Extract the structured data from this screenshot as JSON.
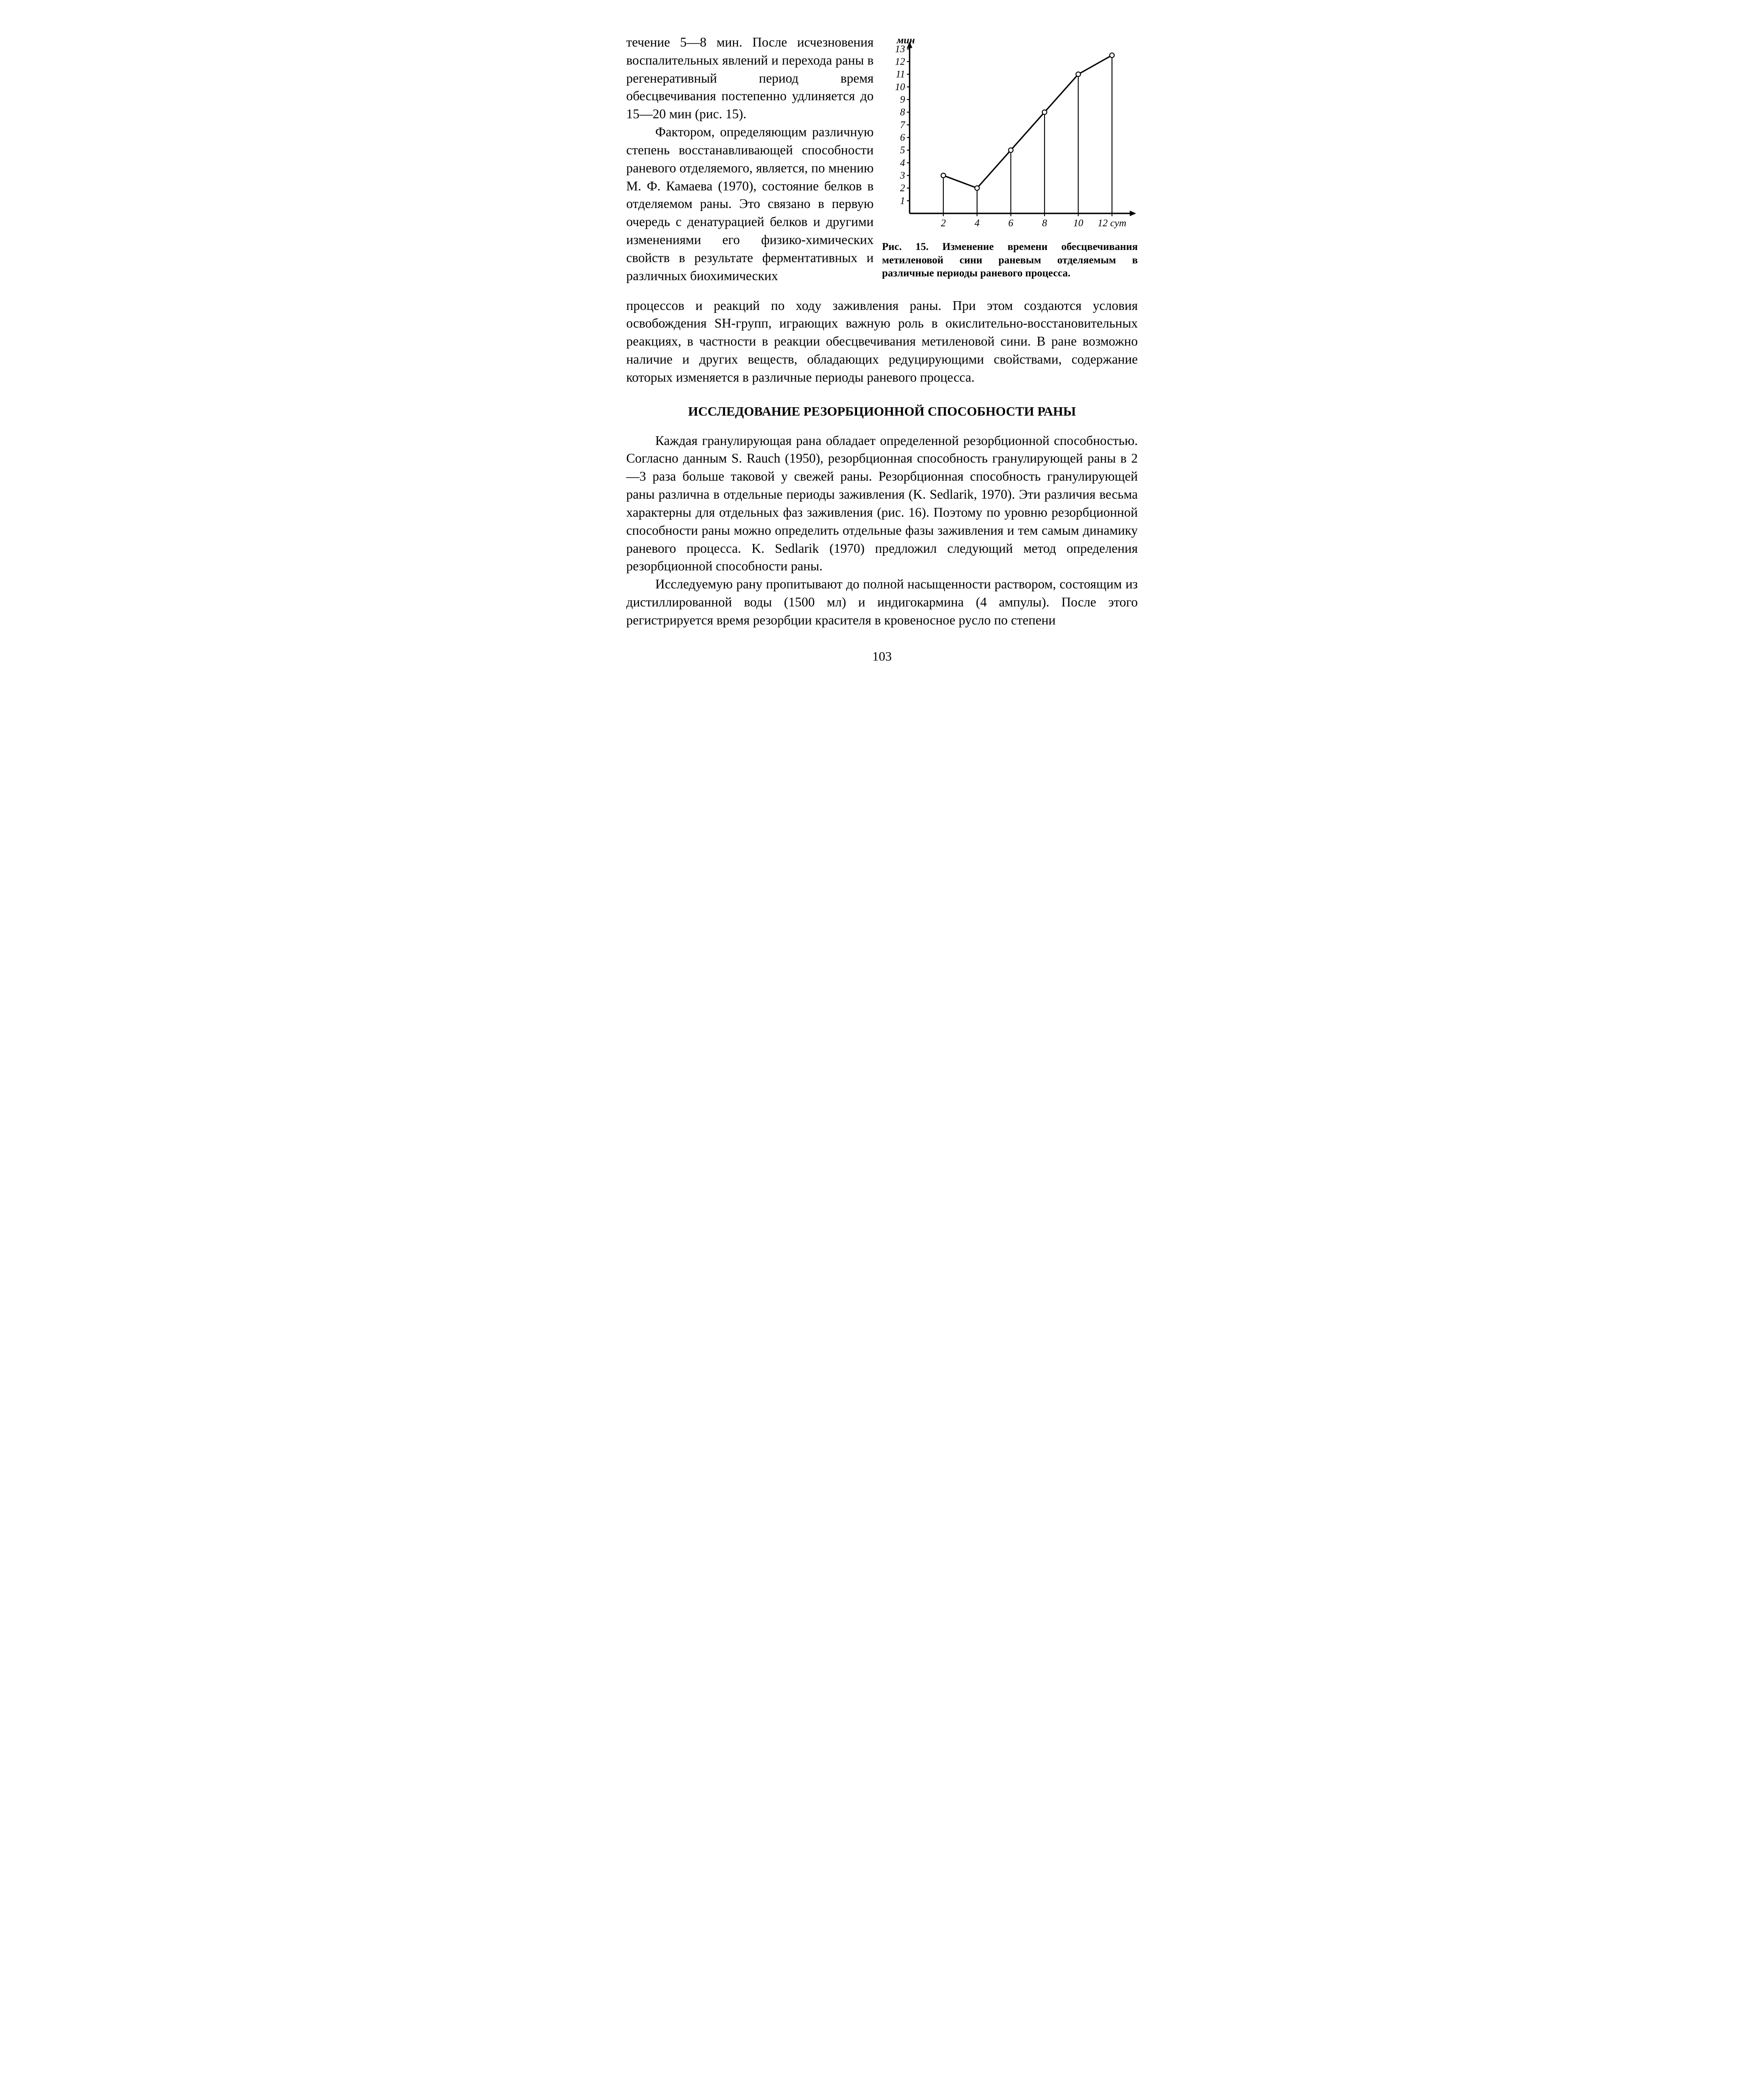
{
  "upper": {
    "p1": "течение 5—8 мин. После исчезновения воспалительных явлений и перехода раны в регенеративный период время обесцвечивания постепенно удлиняется до 15—20 мин (рис. 15).",
    "p2_start": "Фактором, определяющим различную степень восстанавливающей способности раневого отделяемого, является, по мнению М. Ф. Камаева (1970), состояние белков в отделяемом раны. Это связано в первую очередь с денатурацией белков и другими изменениями его физико-химических свойств в результате ферментативных и различных биохимических",
    "p2_full": "процессов и реакций по ходу заживления раны. При этом создаются условия освобождения SH-групп, играющих важную роль в окислительно-восстановительных реакциях, в частности в реакции обесцвечивания метиленовой сини. В ране возможно наличие и других веществ, обладающих редуцирующими свойствами, содержание которых изменяется в различные периоды раневого процесса."
  },
  "figure": {
    "caption": "Рис. 15. Изменение времени обесцвечивания метиленовой сини раневым отделяемым в различные периоды раневого процесса.",
    "ylabel": "мин",
    "xlabel_suffix": "сут",
    "chart": {
      "type": "line",
      "x": [
        2,
        4,
        6,
        8,
        10,
        12
      ],
      "y": [
        3,
        2,
        5,
        8,
        11,
        12.5
      ],
      "ylim": [
        0,
        13
      ],
      "xlim": [
        0,
        13
      ],
      "yticks": [
        1,
        2,
        3,
        4,
        5,
        6,
        7,
        8,
        9,
        10,
        11,
        12,
        13
      ],
      "xticks": [
        2,
        4,
        6,
        8,
        10,
        12
      ],
      "line_color": "#000000",
      "line_width": 3,
      "marker_fill": "#ffffff",
      "marker_stroke": "#000000",
      "marker_radius": 5,
      "drop_lines": true,
      "axis_color": "#000000",
      "axis_width": 3,
      "background": "#ffffff",
      "label_fontsize": 22,
      "font_style": "italic"
    }
  },
  "section_title": "ИССЛЕДОВАНИЕ РЕЗОРБЦИОННОЙ СПОСОБНОСТИ РАНЫ",
  "body": {
    "p3": "Каждая гранулирующая рана обладает определенной резорбционной способностью. Согласно данным S. Rauch (1950), резорбционная способность гранулирующей раны в 2—3 раза больше таковой у свежей раны. Резорбционная способность гранулирующей раны различна в отдельные периоды заживления (K. Sedlarik, 1970). Эти различия весьма характерны для отдельных фаз заживления (рис. 16). Поэтому по уровню резорбционной способности раны можно определить отдельные фазы заживления и тем самым динамику раневого процесса. K. Sedlarik (1970) предложил следующий метод определения резорбционной способности раны.",
    "p4": "Исследуемую рану пропитывают до полной насыщенности раствором, состоящим из дистиллированной воды (1500 мл) и индигокармина (4 ампулы). После этого регистрируется время резорбции красителя в кровеносное русло по степени"
  },
  "page_number": "103"
}
